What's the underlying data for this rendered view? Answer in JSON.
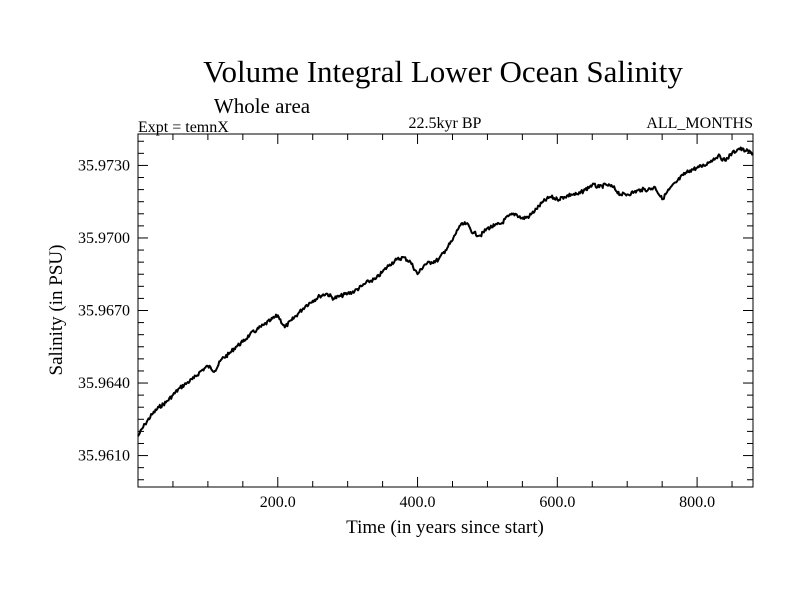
{
  "chart_data": {
    "type": "line",
    "title": "Volume Integral Lower Ocean Salinity",
    "subtitle": "Whole area",
    "annotations": {
      "experiment": "Expt = temnX",
      "period": "22.5kyr BP",
      "months": "ALL_MONTHS"
    },
    "xlabel": "Time (in years since start)",
    "ylabel": "Salinity (in PSU)",
    "xlim": [
      0,
      880
    ],
    "ylim": [
      35.9597,
      35.9743
    ],
    "x_ticks": [
      200,
      400,
      600,
      800
    ],
    "x_tick_labels": [
      "200.0",
      "400.0",
      "600.0",
      "800.0"
    ],
    "y_ticks": [
      35.961,
      35.964,
      35.967,
      35.97,
      35.973
    ],
    "y_tick_labels": [
      "35.9610",
      "35.9640",
      "35.9670",
      "35.9700",
      "35.9730"
    ],
    "grid": false,
    "series": [
      {
        "name": "salinity",
        "x": [
          0,
          10,
          20,
          30,
          40,
          50,
          60,
          70,
          80,
          90,
          100,
          110,
          120,
          130,
          140,
          150,
          160,
          170,
          180,
          190,
          200,
          210,
          220,
          230,
          240,
          250,
          260,
          270,
          280,
          290,
          300,
          310,
          320,
          330,
          340,
          350,
          360,
          370,
          380,
          390,
          400,
          410,
          420,
          430,
          440,
          450,
          460,
          470,
          480,
          490,
          500,
          510,
          520,
          530,
          540,
          550,
          560,
          570,
          580,
          590,
          600,
          610,
          620,
          630,
          640,
          650,
          660,
          670,
          680,
          690,
          700,
          710,
          720,
          730,
          740,
          750,
          760,
          770,
          780,
          790,
          800,
          810,
          820,
          830,
          840,
          850,
          860,
          870,
          880
        ],
        "values": [
          35.9618,
          35.9623,
          35.9627,
          35.963,
          35.9632,
          35.9635,
          35.9638,
          35.964,
          35.9642,
          35.9645,
          35.9647,
          35.9645,
          35.965,
          35.9652,
          35.9655,
          35.9657,
          35.966,
          35.9662,
          35.9664,
          35.9666,
          35.9668,
          35.9663,
          35.9666,
          35.9669,
          35.9672,
          35.9674,
          35.9676,
          35.9677,
          35.9675,
          35.9676,
          35.9677,
          35.9678,
          35.968,
          35.9682,
          35.9683,
          35.9686,
          35.9689,
          35.9691,
          35.9692,
          35.969,
          35.9685,
          35.9689,
          35.969,
          35.9691,
          35.9695,
          35.9699,
          35.9705,
          35.9706,
          35.9702,
          35.9701,
          35.9704,
          35.9705,
          35.9706,
          35.9709,
          35.971,
          35.9708,
          35.9709,
          35.9712,
          35.9715,
          35.9717,
          35.9716,
          35.9717,
          35.9718,
          35.9718,
          35.972,
          35.9722,
          35.9721,
          35.9722,
          35.9721,
          35.9718,
          35.9718,
          35.9719,
          35.972,
          35.972,
          35.9721,
          35.9716,
          35.972,
          35.9723,
          35.9726,
          35.9728,
          35.9729,
          35.973,
          35.9732,
          35.9734,
          35.9732,
          35.9735,
          35.9737,
          35.9736,
          35.9735
        ]
      }
    ]
  }
}
